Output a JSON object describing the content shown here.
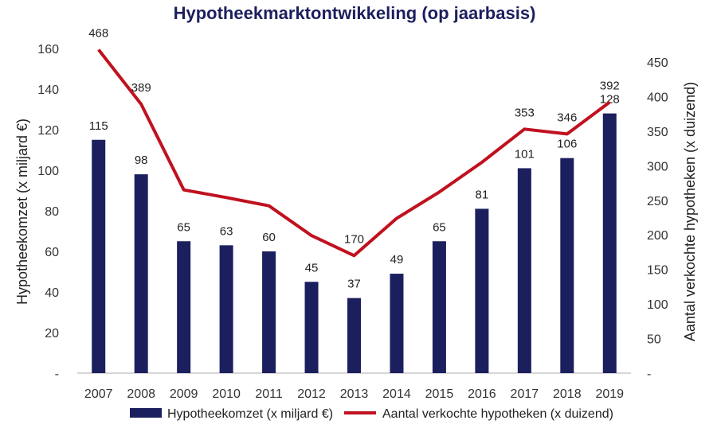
{
  "colors": {
    "bar": "#1c1f5e",
    "line": "#c0111f",
    "title": "#1c1f5e",
    "axis": "#c8c8c8"
  },
  "chart_data": {
    "type": "bar+line",
    "title": "Hypotheekmarktontwikkeling (op jaarbasis)",
    "categories": [
      "2007",
      "2008",
      "2009",
      "2010",
      "2011",
      "2012",
      "2013",
      "2014",
      "2015",
      "2016",
      "2017",
      "2018",
      "2019"
    ],
    "series": [
      {
        "name": "Hypotheekomzet (x miljard €)",
        "type": "bar",
        "axis": "left",
        "values": [
          115,
          98,
          65,
          63,
          60,
          45,
          37,
          49,
          65,
          81,
          101,
          106,
          128
        ]
      },
      {
        "name": "Aantal verkochte hypotheken (x duizend)",
        "type": "line",
        "axis": "right",
        "values": [
          468,
          389,
          265,
          254,
          242,
          199,
          170,
          224,
          262,
          305,
          353,
          346,
          392
        ],
        "labeled": [
          true,
          true,
          false,
          false,
          false,
          false,
          true,
          false,
          false,
          false,
          true,
          true,
          true
        ]
      }
    ],
    "ylabel_left": "Hypotheekomzet (x miljard €)",
    "ylabel_right": "Aantal verkochte hypotheken (x duizend)",
    "ylim_left": [
      0,
      160
    ],
    "ylim_right": [
      0,
      469
    ],
    "yticks_left": [
      "-",
      "20",
      "40",
      "60",
      "80",
      "100",
      "120",
      "140",
      "160"
    ],
    "yticks_left_values": [
      0,
      20,
      40,
      60,
      80,
      100,
      120,
      140,
      160
    ],
    "yticks_right": [
      "-",
      "50",
      "100",
      "150",
      "200",
      "250",
      "300",
      "350",
      "400",
      "450"
    ],
    "yticks_right_values": [
      0,
      50,
      100,
      150,
      200,
      250,
      300,
      350,
      400,
      450
    ],
    "legend_position": "bottom",
    "grid": false
  }
}
